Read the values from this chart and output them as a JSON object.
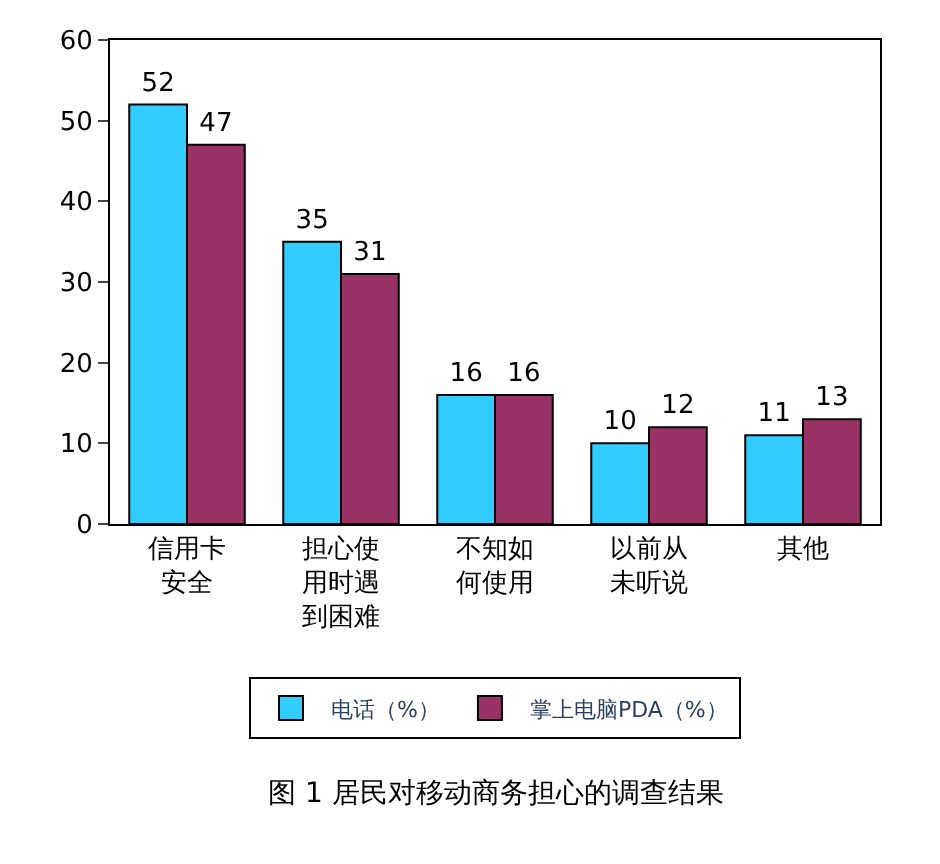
{
  "chart_data": {
    "type": "bar",
    "categories": [
      "信用卡安全",
      "担心使用时遇到困难",
      "不知如何使用",
      "以前从未听说",
      "其他"
    ],
    "series": [
      {
        "name": "电话（%）",
        "color": "#33ccff",
        "values": [
          52,
          35,
          16,
          10,
          11
        ]
      },
      {
        "name": "掌上电脑PDA（%）",
        "color": "#993366",
        "values": [
          47,
          31,
          16,
          12,
          13
        ]
      }
    ],
    "ylim": [
      0,
      60
    ],
    "yticks": [
      0,
      10,
      20,
      30,
      40,
      50,
      60
    ],
    "data_labels": true,
    "grid": false,
    "legend": "bottom",
    "annotations": [
      "图 1 居民对移动商务担心的调查结果"
    ]
  }
}
